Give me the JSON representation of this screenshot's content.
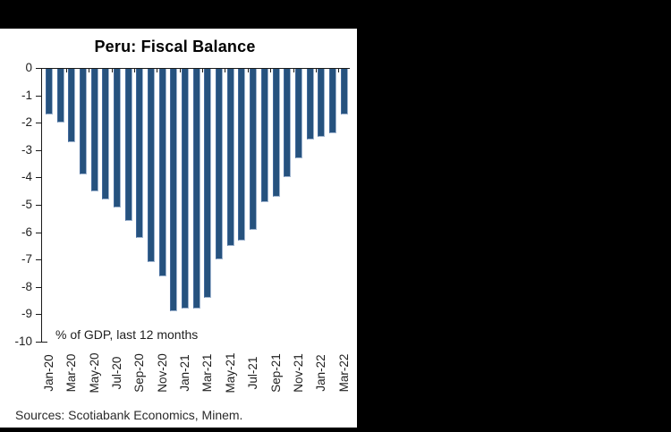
{
  "colors": {
    "canvas_bg": "#000000",
    "panel_bg": "#ffffff",
    "bar_fill": "#26527e",
    "bar_edge_dark": "#41699b",
    "bar_edge_light": "#9fb4cf",
    "axis": "#1a1a1a",
    "text": "#1f1f1f"
  },
  "chart_data": {
    "type": "bar",
    "title": "Peru: Fiscal Balance",
    "annotation": "% of GDP, last 12 months",
    "source": "Sources: Scotiabank Economics, Minem.",
    "xlabel": "",
    "ylabel": "",
    "ylim": [
      -10,
      0
    ],
    "gridlines": false,
    "legend": "none",
    "y_ticks": [
      0,
      -1,
      -2,
      -3,
      -4,
      -5,
      -6,
      -7,
      -8,
      -9,
      -10
    ],
    "categories": [
      "Jan-20",
      "Feb-20",
      "Mar-20",
      "Apr-20",
      "May-20",
      "Jun-20",
      "Jul-20",
      "Aug-20",
      "Sep-20",
      "Oct-20",
      "Nov-20",
      "Dec-20",
      "Jan-21",
      "Feb-21",
      "Mar-21",
      "Apr-21",
      "May-21",
      "Jun-21",
      "Jul-21",
      "Aug-21",
      "Sep-21",
      "Oct-21",
      "Nov-21",
      "Dec-21",
      "Jan-22",
      "Feb-22",
      "Mar-22"
    ],
    "values": [
      -1.7,
      -2.0,
      -2.7,
      -3.9,
      -4.5,
      -4.8,
      -5.1,
      -5.6,
      -6.2,
      -7.1,
      -7.6,
      -8.9,
      -8.8,
      -8.8,
      -8.4,
      -7.0,
      -6.5,
      -6.3,
      -5.9,
      -4.9,
      -4.7,
      -4.0,
      -3.3,
      -2.6,
      -2.5,
      -2.4,
      -1.7
    ],
    "x_axis_labels_shown": [
      "Jan-20",
      "Mar-20",
      "May-20",
      "Jul-20",
      "Sep-20",
      "Nov-20",
      "Jan-21",
      "Mar-21",
      "May-21",
      "Jul-21",
      "Sep-21",
      "Nov-21",
      "Jan-22",
      "Mar-22"
    ]
  }
}
